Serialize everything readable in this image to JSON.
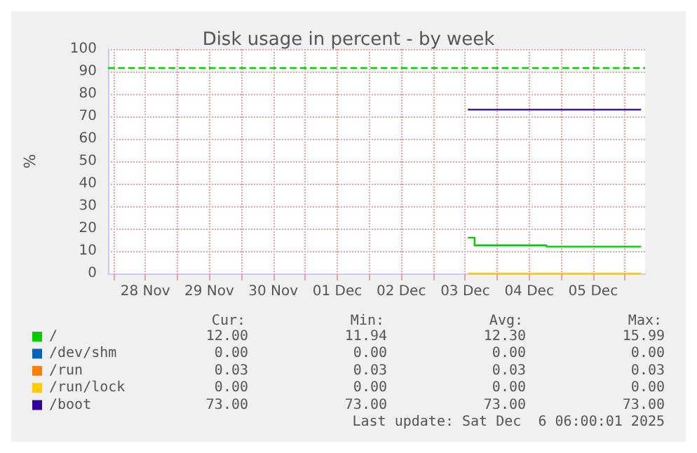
{
  "chart_data": {
    "type": "step",
    "title": "Disk usage in percent - by week",
    "ylabel": "%",
    "xlim": [
      "2025-11-27T22:00",
      "2025-12-06T07:30"
    ],
    "xticks": [
      {
        "value": "2025-11-28T00:00",
        "label": null
      },
      {
        "value": "2025-11-28T12:00",
        "label": "28 Nov"
      },
      {
        "value": "2025-11-29T00:00",
        "label": null
      },
      {
        "value": "2025-11-29T12:00",
        "label": "29 Nov"
      },
      {
        "value": "2025-11-30T00:00",
        "label": null
      },
      {
        "value": "2025-11-30T12:00",
        "label": "30 Nov"
      },
      {
        "value": "2025-12-01T00:00",
        "label": null
      },
      {
        "value": "2025-12-01T12:00",
        "label": "01 Dec"
      },
      {
        "value": "2025-12-02T00:00",
        "label": null
      },
      {
        "value": "2025-12-02T12:00",
        "label": "02 Dec"
      },
      {
        "value": "2025-12-03T00:00",
        "label": null
      },
      {
        "value": "2025-12-03T12:00",
        "label": "03 Dec"
      },
      {
        "value": "2025-12-04T00:00",
        "label": null
      },
      {
        "value": "2025-12-04T12:00",
        "label": "04 Dec"
      },
      {
        "value": "2025-12-05T00:00",
        "label": null
      },
      {
        "value": "2025-12-05T12:00",
        "label": "05 Dec"
      },
      {
        "value": "2025-12-06T00:00",
        "label": null
      }
    ],
    "ylim": [
      0,
      100
    ],
    "yticks": [
      0,
      10,
      20,
      30,
      40,
      50,
      60,
      70,
      80,
      90,
      100
    ],
    "grid": true,
    "legend": "bottom left",
    "x": [
      "2025-12-03T13:00",
      "2025-12-03T15:00",
      "2025-12-03T15:30",
      "2025-12-04T18:30",
      "2025-12-06T06:00"
    ],
    "series": [
      {
        "name": "/",
        "color": "#00cc00",
        "values": [
          15.99,
          15.99,
          12.6,
          12.0,
          12.0
        ]
      },
      {
        "name": "/dev/shm",
        "color": "#0066b3",
        "values": [
          null,
          null,
          null,
          null,
          null
        ]
      },
      {
        "name": "/run",
        "color": "#ff8000",
        "values": [
          null,
          null,
          null,
          null,
          null
        ]
      },
      {
        "name": "/run/lock",
        "color": "#ffcc00",
        "values": [
          0,
          0,
          0,
          0,
          0
        ]
      },
      {
        "name": "/boot",
        "color": "#330099",
        "values": [
          73,
          73,
          73,
          73,
          73
        ]
      }
    ],
    "ref_lines": [
      {
        "axis": "y",
        "value": 92,
        "color": "#00cc00",
        "line_style": "dashed"
      }
    ],
    "annotations": [
      "Cur:",
      "Min:",
      "Avg:",
      "Max:",
      "12.00",
      "11.94",
      "12.30",
      "15.99",
      "0.00",
      "0.00",
      "0.00",
      "0.00",
      "0.03",
      "0.03",
      "0.03",
      "0.03",
      "0.00",
      "0.00",
      "0.00",
      "0.00",
      "73.00",
      "73.00",
      "73.00",
      "73.00",
      "Last update: Sat Dec  6 06:00:01 2025"
    ]
  }
}
